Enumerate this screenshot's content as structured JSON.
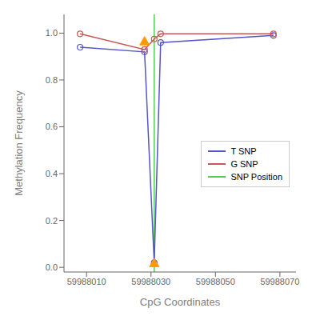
{
  "chart_data": {
    "type": "line",
    "xlabel": "CpG Coordinates",
    "ylabel": "Methylation Frequency",
    "xlim": [
      59988003,
      59988075
    ],
    "ylim": [
      -0.02,
      1.08
    ],
    "xticks": [
      59988010,
      59988030,
      59988050,
      59988070
    ],
    "yticks": [
      {
        "value": 0.0,
        "label": "0.0"
      },
      {
        "value": 0.2,
        "label": "0.2"
      },
      {
        "value": 0.4,
        "label": "0.4"
      },
      {
        "value": 0.6,
        "label": "0.6"
      },
      {
        "value": 0.8,
        "label": "0.8"
      },
      {
        "value": 1.0,
        "label": "1.0"
      }
    ],
    "grid": false,
    "legend": "right",
    "series": [
      {
        "name": "T SNP",
        "color": "#5555cc",
        "marker": "circle",
        "x": [
          59988008,
          59988028,
          59988031,
          59988033,
          59988068
        ],
        "values": [
          0.94,
          0.92,
          0.02,
          0.96,
          0.99
        ]
      },
      {
        "name": "G SNP",
        "color": "#cc5555",
        "marker": "circle",
        "x": [
          59988008,
          59988028,
          59988031,
          59988033,
          59988068
        ],
        "values": [
          0.997,
          0.93,
          0.975,
          0.997,
          0.997
        ]
      },
      {
        "type": "scatter",
        "color": "#ff9900",
        "marker": "triangle",
        "x": [
          59988028,
          59988031
        ],
        "values": [
          0.965,
          0.018
        ]
      }
    ],
    "reference_lines": [
      {
        "name": "SNP Position",
        "x": 59988031,
        "color": "#55cc55"
      }
    ]
  }
}
